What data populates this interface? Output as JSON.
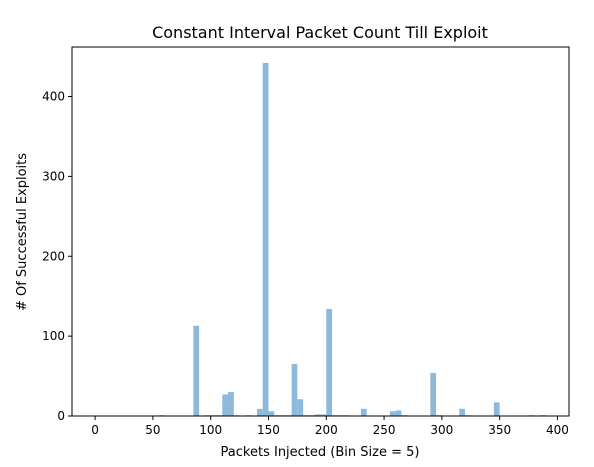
{
  "chart_data": {
    "type": "bar",
    "title": "Constant Interval Packet Count Till Exploit",
    "xlabel": "Packets Injected (Bin Size = 5)",
    "ylabel": "# Of Successful Exploits",
    "xlim": [
      -20,
      410
    ],
    "ylim": [
      0,
      462
    ],
    "xticks": [
      0,
      50,
      100,
      150,
      200,
      250,
      300,
      350,
      400
    ],
    "yticks": [
      0,
      100,
      200,
      300,
      400
    ],
    "bin_width": 5,
    "bar_color": "#8db9dc",
    "series": [
      {
        "x": [
          55,
          85,
          95,
          100,
          105,
          110,
          115,
          120,
          130,
          140,
          145,
          150,
          155,
          160,
          165,
          170,
          175,
          180,
          185,
          190,
          195,
          200,
          205,
          210,
          215,
          230,
          255,
          260,
          265,
          290,
          295,
          315,
          320,
          345,
          375,
          385
        ],
        "values": [
          1,
          113,
          1,
          1,
          1,
          27,
          30,
          1,
          1,
          9,
          442,
          6,
          1,
          1,
          1,
          65,
          21,
          1,
          1,
          2,
          2,
          134,
          1,
          1,
          1,
          9,
          6,
          7,
          1,
          54,
          1,
          9,
          1,
          17,
          1,
          1
        ]
      }
    ]
  }
}
